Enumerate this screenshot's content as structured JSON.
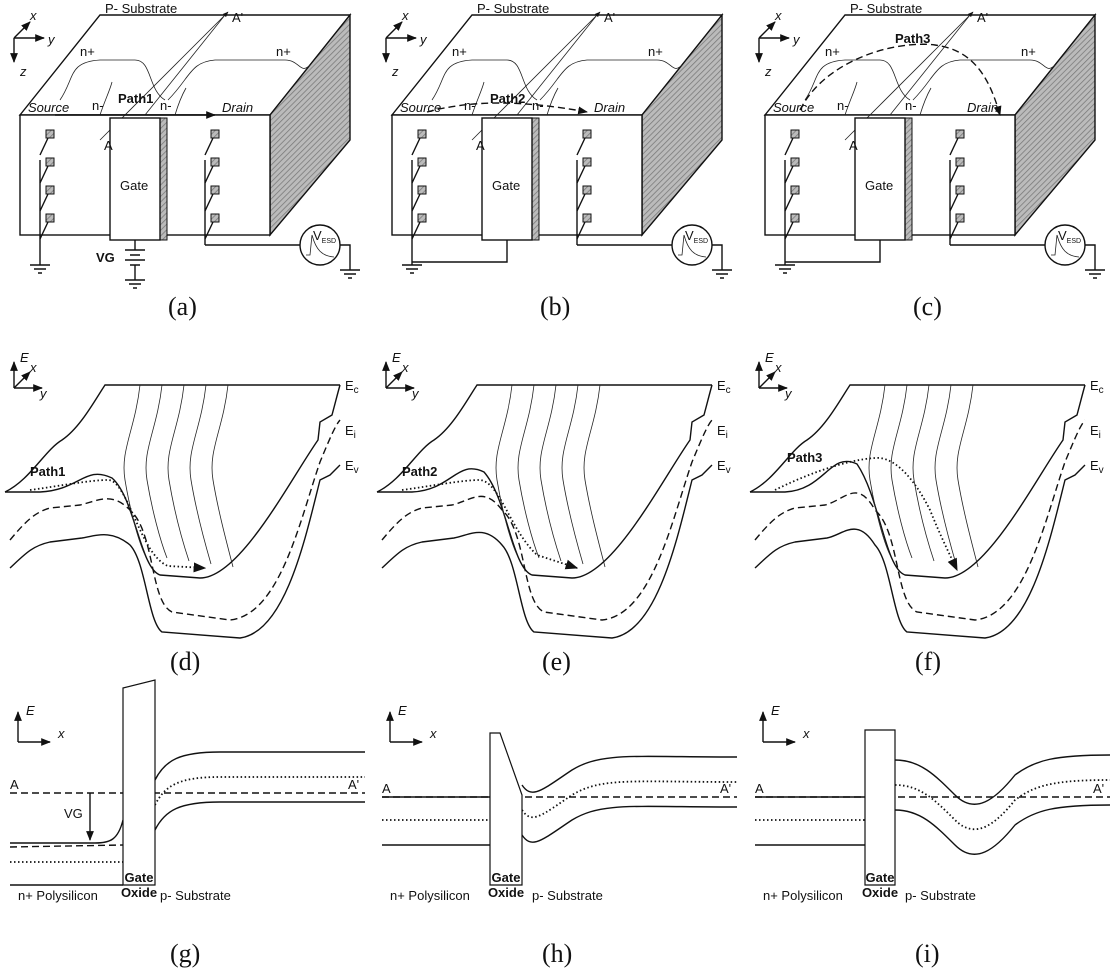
{
  "devices": [
    {
      "label": "(a)",
      "axes": {
        "x": "x",
        "y": "y",
        "z": "z"
      },
      "substrate": "P- Substrate",
      "a_prime": "A'",
      "regions": [
        "n+",
        "n-",
        "n-",
        "n+"
      ],
      "source": "Source",
      "drain": "Drain",
      "path": "Path1",
      "a": "A",
      "gate": "Gate",
      "vg": "VG",
      "vesd": {
        "main": "V",
        "sub": "ESD"
      }
    },
    {
      "label": "(b)",
      "axes": {
        "x": "x",
        "y": "y",
        "z": "z"
      },
      "substrate": "P- Substrate",
      "a_prime": "A'",
      "regions": [
        "n+",
        "n-",
        "n-",
        "n+"
      ],
      "source": "Source",
      "drain": "Drain",
      "path": "Path2",
      "a": "A",
      "gate": "Gate",
      "vesd": {
        "main": "V",
        "sub": "ESD"
      }
    },
    {
      "label": "(c)",
      "axes": {
        "x": "x",
        "y": "y",
        "z": "z"
      },
      "substrate": "P- Substrate",
      "a_prime": "A'",
      "regions": [
        "n+",
        "n-",
        "n-",
        "n+"
      ],
      "source": "Source",
      "drain": "Drain",
      "path": "Path3",
      "a": "A",
      "gate": "Gate",
      "vesd": {
        "main": "V",
        "sub": "ESD"
      }
    }
  ],
  "bands3d": [
    {
      "label": "(d)",
      "axes": {
        "e": "E",
        "x": "x",
        "y": "y"
      },
      "path": "Path1",
      "levels": [
        {
          "main": "E",
          "sub": "c"
        },
        {
          "main": "E",
          "sub": "i"
        },
        {
          "main": "E",
          "sub": "v"
        }
      ]
    },
    {
      "label": "(e)",
      "axes": {
        "e": "E",
        "x": "x",
        "y": "y"
      },
      "path": "Path2",
      "levels": [
        {
          "main": "E",
          "sub": "c"
        },
        {
          "main": "E",
          "sub": "i"
        },
        {
          "main": "E",
          "sub": "v"
        }
      ]
    },
    {
      "label": "(f)",
      "axes": {
        "e": "E",
        "x": "x",
        "y": "y"
      },
      "path": "Path3",
      "levels": [
        {
          "main": "E",
          "sub": "c"
        },
        {
          "main": "E",
          "sub": "i"
        },
        {
          "main": "E",
          "sub": "v"
        }
      ]
    }
  ],
  "bands1d": [
    {
      "label": "(g)",
      "axes": {
        "e": "E",
        "x": "x"
      },
      "a": "A",
      "a_prime": "A'",
      "vg": "VG",
      "materials": {
        "poly": "n+ Polysilicon",
        "gate": "Gate",
        "oxide": "Oxide",
        "substrate": "p- Substrate"
      }
    },
    {
      "label": "(h)",
      "axes": {
        "e": "E",
        "x": "x"
      },
      "a": "A",
      "a_prime": "A'",
      "materials": {
        "poly": "n+ Polysilicon",
        "gate": "Gate",
        "oxide": "Oxide",
        "substrate": "p- Substrate"
      }
    },
    {
      "label": "(i)",
      "axes": {
        "e": "E",
        "x": "x"
      },
      "a": "A",
      "a_prime": "A'",
      "materials": {
        "poly": "n+ Polysilicon",
        "gate": "Gate",
        "oxide": "Oxide",
        "substrate": "p- Substrate"
      }
    }
  ]
}
